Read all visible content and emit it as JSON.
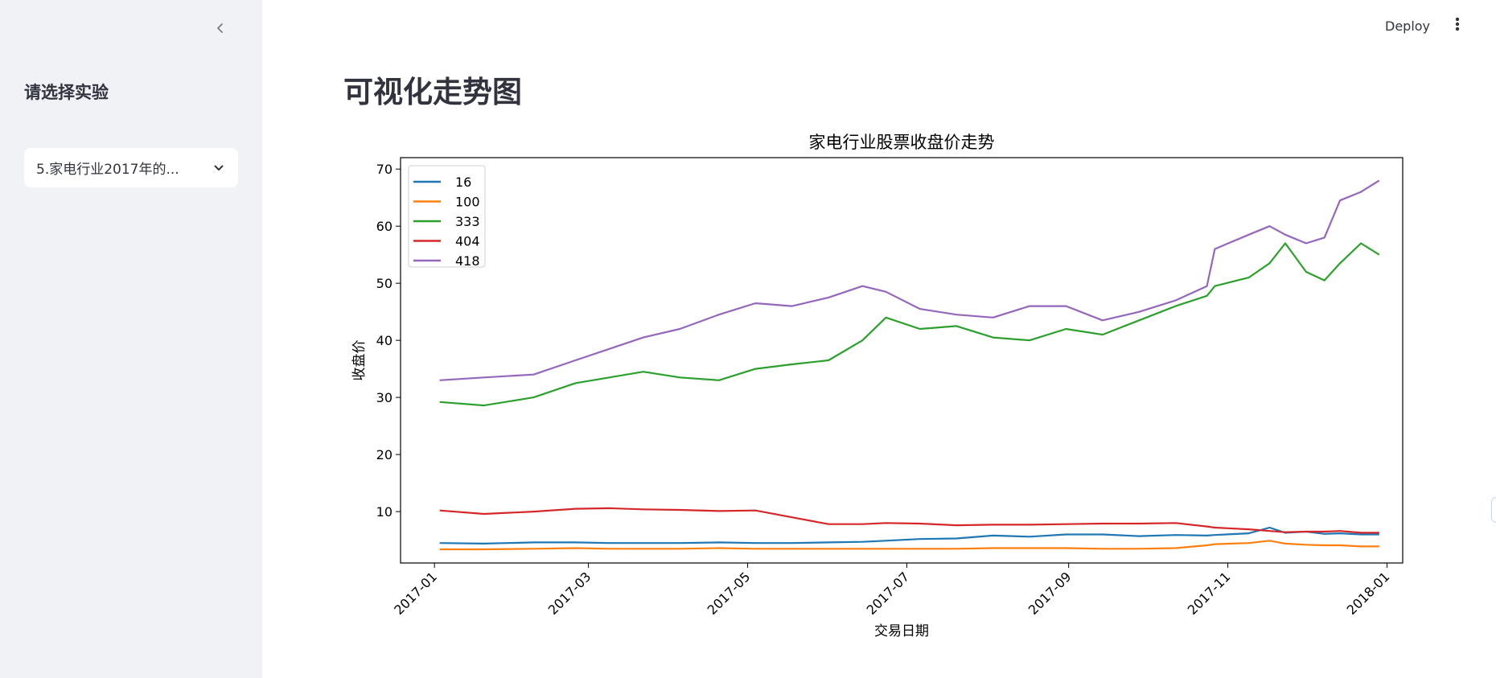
{
  "sidebar": {
    "title": "请选择实验",
    "select": {
      "value": "5.家电行业2017年的..."
    },
    "collapse_icon": "chevron-left-icon"
  },
  "header": {
    "deploy_label": "Deploy",
    "menu_icon": "vertical-dots-icon"
  },
  "main": {
    "title": "可视化走势图"
  },
  "chart_data": {
    "type": "line",
    "title": "家电行业股票收盘价走势",
    "xlabel": "交易日期",
    "ylabel": "收盘价",
    "ylim": [
      1,
      72
    ],
    "yticks": [
      10,
      20,
      30,
      40,
      50,
      60,
      70
    ],
    "xlim": [
      "2016-12-19",
      "2018-01-07"
    ],
    "xticks": [
      "2017-01",
      "2017-03",
      "2017-05",
      "2017-07",
      "2017-09",
      "2017-11",
      "2018-01"
    ],
    "legend": "top-left",
    "x": [
      "2017-01-03",
      "2017-01-20",
      "2017-02-08",
      "2017-02-24",
      "2017-03-09",
      "2017-03-22",
      "2017-04-05",
      "2017-04-20",
      "2017-05-04",
      "2017-05-18",
      "2017-06-01",
      "2017-06-14",
      "2017-06-23",
      "2017-07-06",
      "2017-07-20",
      "2017-08-03",
      "2017-08-17",
      "2017-08-31",
      "2017-09-14",
      "2017-09-28",
      "2017-10-12",
      "2017-10-24",
      "2017-10-27",
      "2017-11-09",
      "2017-11-17",
      "2017-11-23",
      "2017-12-01",
      "2017-12-08",
      "2017-12-14",
      "2017-12-22",
      "2017-12-29"
    ],
    "series": [
      {
        "name": "16",
        "color": "#1f77b4",
        "values": [
          4.5,
          4.4,
          4.6,
          4.6,
          4.5,
          4.5,
          4.5,
          4.6,
          4.5,
          4.5,
          4.6,
          4.7,
          4.9,
          5.2,
          5.3,
          5.8,
          5.6,
          6.0,
          6.0,
          5.7,
          5.9,
          5.8,
          5.9,
          6.2,
          7.2,
          6.3,
          6.5,
          6.1,
          6.2,
          6.0,
          6.0
        ]
      },
      {
        "name": "100",
        "color": "#ff7f0e",
        "values": [
          3.4,
          3.4,
          3.5,
          3.6,
          3.5,
          3.5,
          3.5,
          3.6,
          3.5,
          3.5,
          3.5,
          3.5,
          3.5,
          3.5,
          3.5,
          3.6,
          3.6,
          3.6,
          3.5,
          3.5,
          3.6,
          4.1,
          4.3,
          4.5,
          4.9,
          4.4,
          4.2,
          4.1,
          4.1,
          3.9,
          3.9
        ]
      },
      {
        "name": "333",
        "color": "#2ca02c",
        "values": [
          29.2,
          28.6,
          30.0,
          32.5,
          33.5,
          34.5,
          33.5,
          33.0,
          35.0,
          35.8,
          36.5,
          40.0,
          44.0,
          42.0,
          42.5,
          40.5,
          40.0,
          42.0,
          41.0,
          43.5,
          46.0,
          47.8,
          49.5,
          51.0,
          53.5,
          57.0,
          52.0,
          50.5,
          53.5,
          57.0,
          55.0
        ]
      },
      {
        "name": "404",
        "color": "#d62728",
        "values": [
          10.2,
          9.6,
          10.0,
          10.5,
          10.6,
          10.4,
          10.3,
          10.1,
          10.2,
          9.0,
          7.8,
          7.8,
          8.0,
          7.9,
          7.6,
          7.7,
          7.7,
          7.8,
          7.9,
          7.9,
          8.0,
          7.4,
          7.2,
          6.9,
          6.6,
          6.4,
          6.5,
          6.5,
          6.6,
          6.3,
          6.3
        ]
      },
      {
        "name": "418",
        "color": "#9467bd",
        "values": [
          33.0,
          33.5,
          34.0,
          36.5,
          38.5,
          40.5,
          42.0,
          44.5,
          46.5,
          46.0,
          47.5,
          49.5,
          48.5,
          45.5,
          44.5,
          44.0,
          46.0,
          46.0,
          43.5,
          45.0,
          47.0,
          49.5,
          56.0,
          58.5,
          60.0,
          58.5,
          57.0,
          58.0,
          64.5,
          66.0,
          68.0
        ]
      }
    ]
  }
}
